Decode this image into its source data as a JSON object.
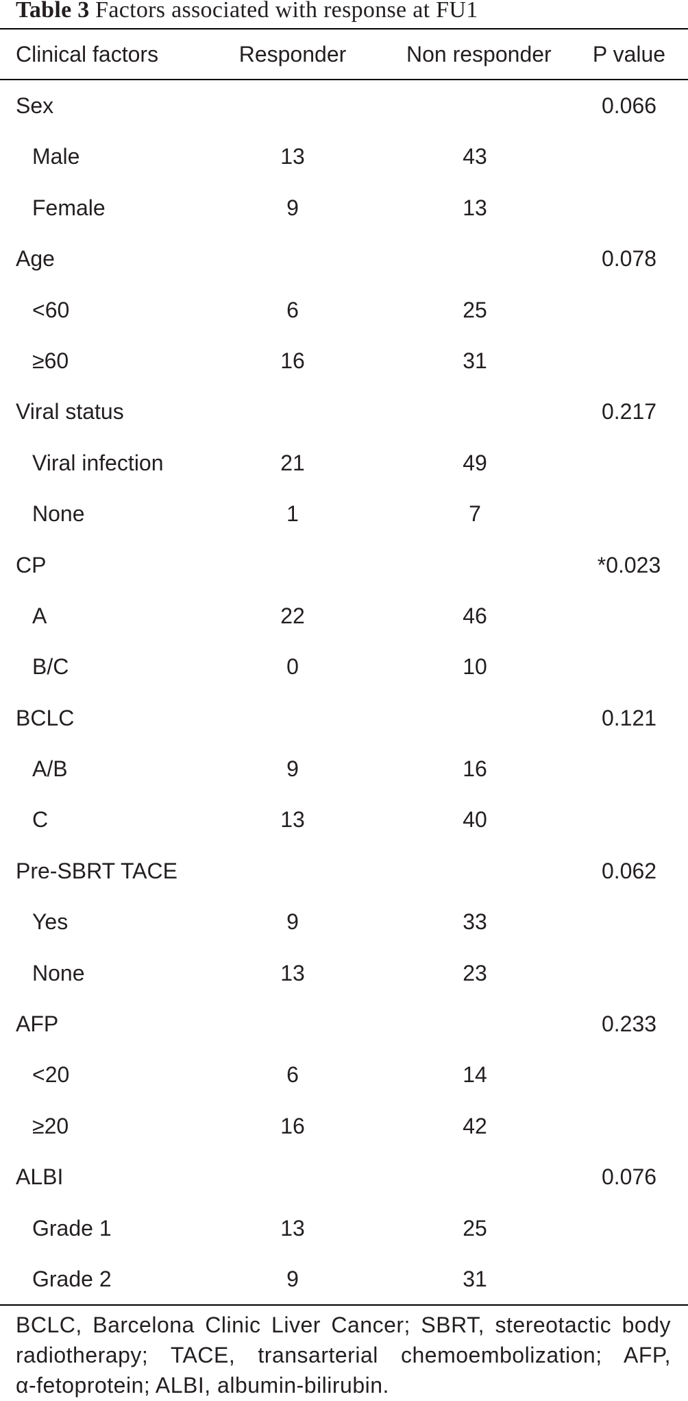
{
  "title": {
    "label": "Table 3",
    "caption": "Factors associated with response at FU1"
  },
  "header": {
    "factor": "Clinical factors",
    "responder": "Responder",
    "non_responder": "Non responder",
    "p_value": "P value"
  },
  "groups": [
    {
      "factor": "Sex",
      "p_value": "0.066",
      "levels": [
        {
          "label": "Male",
          "responder": "13",
          "non_responder": "43"
        },
        {
          "label": "Female",
          "responder": "9",
          "non_responder": "13"
        }
      ]
    },
    {
      "factor": "Age",
      "p_value": "0.078",
      "levels": [
        {
          "label": "<60",
          "responder": "6",
          "non_responder": "25"
        },
        {
          "label": "≥60",
          "responder": "16",
          "non_responder": "31"
        }
      ]
    },
    {
      "factor": "Viral status",
      "p_value": "0.217",
      "levels": [
        {
          "label": "Viral infection",
          "responder": "21",
          "non_responder": "49"
        },
        {
          "label": "None",
          "responder": "1",
          "non_responder": "7"
        }
      ]
    },
    {
      "factor": "CP",
      "p_value": "*0.023",
      "levels": [
        {
          "label": "A",
          "responder": "22",
          "non_responder": "46"
        },
        {
          "label": "B/C",
          "responder": "0",
          "non_responder": "10"
        }
      ]
    },
    {
      "factor": "BCLC",
      "p_value": "0.121",
      "levels": [
        {
          "label": "A/B",
          "responder": "9",
          "non_responder": "16"
        },
        {
          "label": "C",
          "responder": "13",
          "non_responder": "40"
        }
      ]
    },
    {
      "factor": "Pre-SBRT TACE",
      "p_value": "0.062",
      "levels": [
        {
          "label": "Yes",
          "responder": "9",
          "non_responder": "33"
        },
        {
          "label": "None",
          "responder": "13",
          "non_responder": "23"
        }
      ]
    },
    {
      "factor": "AFP",
      "p_value": "0.233",
      "levels": [
        {
          "label": "<20",
          "responder": "6",
          "non_responder": "14"
        },
        {
          "label": "≥20",
          "responder": "16",
          "non_responder": "42"
        }
      ]
    },
    {
      "factor": "ALBI",
      "p_value": "0.076",
      "levels": [
        {
          "label": "Grade 1",
          "responder": "13",
          "non_responder": "25"
        },
        {
          "label": "Grade 2",
          "responder": "9",
          "non_responder": "31"
        }
      ]
    }
  ],
  "footnote_lines": [
    "BCLC, Barcelona Clinic Liver Cancer; SBRT, stereotactic body",
    "radiotherapy; TACE, transarterial chemoembolization; AFP,",
    "α-fetoprotein; ALBI, albumin-bilirubin."
  ]
}
